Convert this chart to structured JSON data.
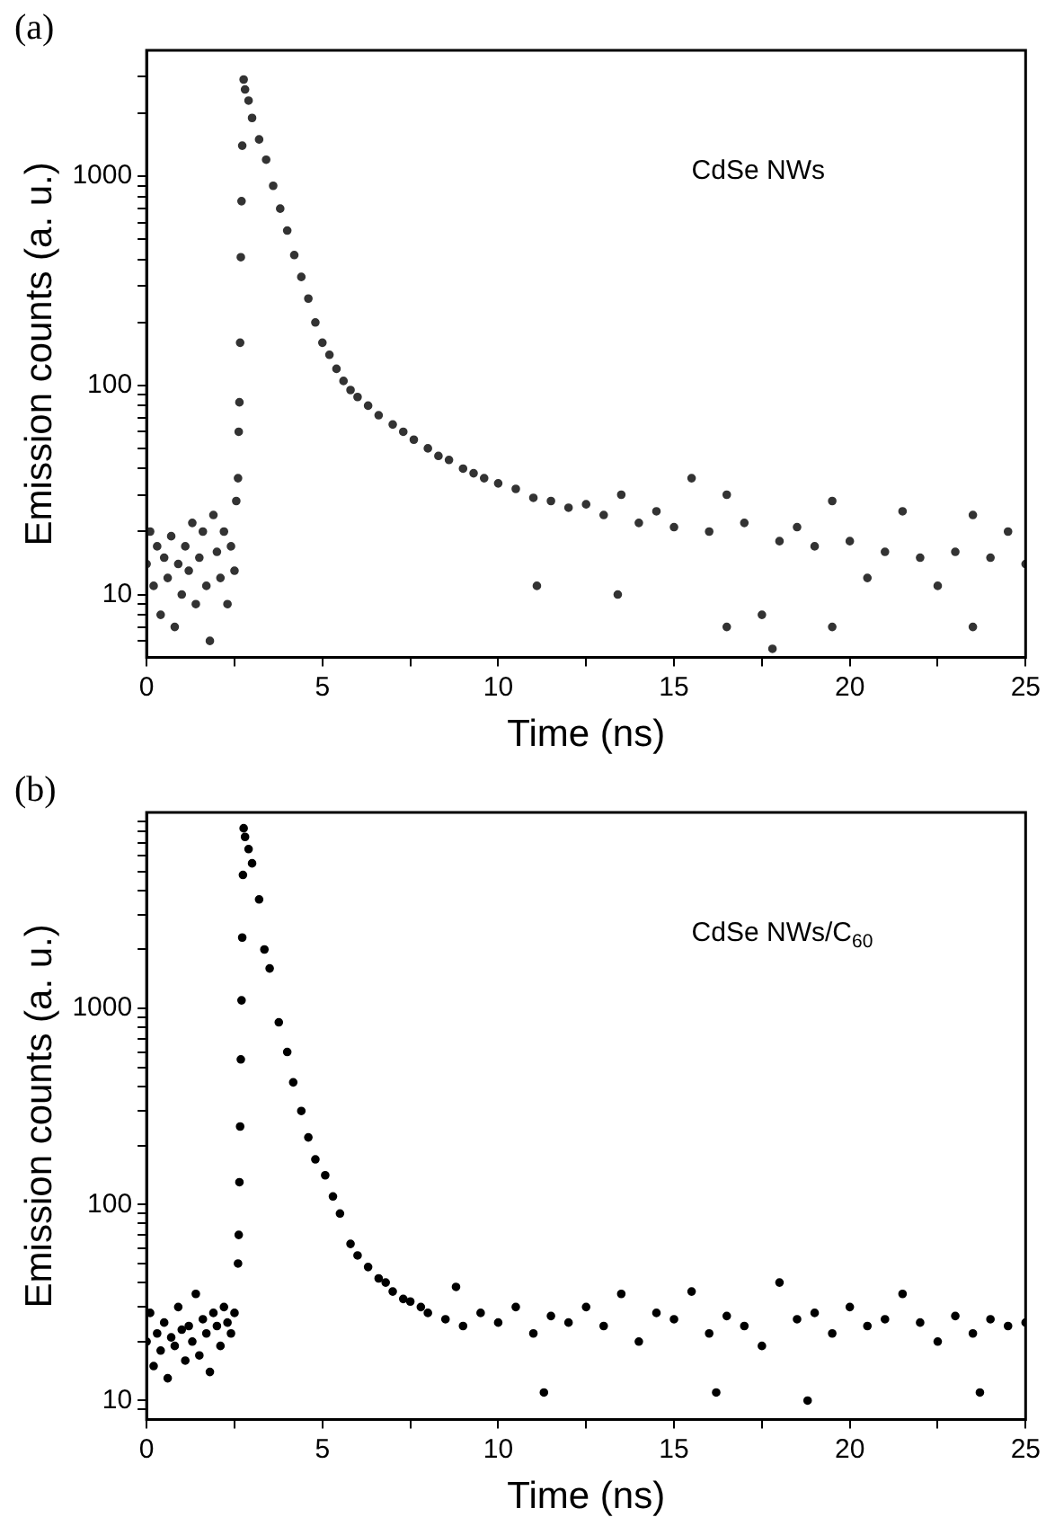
{
  "chart_data": [
    {
      "type": "scatter",
      "title": "(a)",
      "xlabel": "Time (ns)",
      "ylabel": "Emission counts (a. u.)",
      "annotations": [
        "CdSe NWs"
      ],
      "log": "y",
      "grid": false,
      "legend": false,
      "marker": "circle",
      "xlim": [
        0,
        25
      ],
      "ylim": [
        5,
        4000
      ],
      "xticks": [
        0,
        {
          "value": 2.5,
          "label": null
        },
        5,
        {
          "value": 7.5,
          "label": null
        },
        10,
        {
          "value": 12.5,
          "label": null
        },
        15,
        {
          "value": 17.5,
          "label": null
        },
        20,
        {
          "value": 22.5,
          "label": null
        },
        25
      ],
      "yticks": [
        {
          "value": 6,
          "label": null
        },
        {
          "value": 7,
          "label": null
        },
        {
          "value": 8,
          "label": null
        },
        {
          "value": 9,
          "label": null
        },
        10,
        {
          "value": 20,
          "label": null
        },
        {
          "value": 30,
          "label": null
        },
        {
          "value": 40,
          "label": null
        },
        {
          "value": 50,
          "label": null
        },
        {
          "value": 60,
          "label": null
        },
        {
          "value": 70,
          "label": null
        },
        {
          "value": 80,
          "label": null
        },
        {
          "value": 90,
          "label": null
        },
        100,
        {
          "value": 200,
          "label": null
        },
        {
          "value": 300,
          "label": null
        },
        {
          "value": 400,
          "label": null
        },
        {
          "value": 500,
          "label": null
        },
        {
          "value": 600,
          "label": null
        },
        {
          "value": 700,
          "label": null
        },
        {
          "value": 800,
          "label": null
        },
        {
          "value": 900,
          "label": null
        },
        1000,
        {
          "value": 2000,
          "label": null
        },
        {
          "value": 3000,
          "label": null
        }
      ],
      "series": [
        {
          "color": "#333333",
          "x": [
            0,
            0.1,
            0.2,
            0.3,
            0.4,
            0.5,
            0.6,
            0.7,
            0.8,
            0.9,
            1.0,
            1.1,
            1.2,
            1.3,
            1.4,
            1.5,
            1.6,
            1.7,
            1.8,
            1.9,
            2.0,
            2.1,
            2.2,
            2.3,
            2.4,
            2.5,
            2.55,
            2.6,
            2.62,
            2.64,
            2.66,
            2.68,
            2.7,
            2.72,
            2.76,
            2.8,
            2.9,
            3.0,
            3.2,
            3.4,
            3.6,
            3.8,
            4.0,
            4.2,
            4.4,
            4.6,
            4.8,
            5.0,
            5.2,
            5.4,
            5.6,
            5.8,
            6.0,
            6.3,
            6.6,
            7.0,
            7.3,
            7.6,
            8.0,
            8.3,
            8.6,
            9.0,
            9.3,
            9.6,
            10.0,
            10.5,
            11,
            11.1,
            11.5,
            12,
            12.5,
            13,
            13.4,
            13.5,
            14,
            14.5,
            15,
            15.5,
            16,
            16.5,
            16.5,
            17,
            17.5,
            17.8,
            18,
            18.5,
            19,
            19.5,
            19.5,
            20,
            20.5,
            21,
            21.5,
            22,
            22.5,
            23,
            23.5,
            23.5,
            24,
            24.5,
            25
          ],
          "values": [
            14,
            20,
            11,
            17,
            8,
            15,
            12,
            19,
            7,
            14,
            10,
            17,
            13,
            22,
            9,
            15,
            20,
            11,
            6,
            24,
            16,
            12,
            20,
            9,
            17,
            13,
            28,
            36,
            60,
            83,
            160,
            410,
            760,
            1400,
            2900,
            2600,
            2300,
            1900,
            1500,
            1200,
            900,
            700,
            550,
            420,
            330,
            260,
            200,
            160,
            140,
            120,
            105,
            95,
            88,
            80,
            72,
            65,
            60,
            55,
            50,
            46,
            44,
            40,
            38,
            36,
            34,
            32,
            29,
            11,
            28,
            26,
            27,
            24,
            10,
            30,
            22,
            25,
            21,
            36,
            20,
            7,
            30,
            22,
            8,
            5.5,
            18,
            21,
            17,
            7,
            28,
            18,
            12,
            16,
            25,
            15,
            11,
            16,
            7,
            24,
            15,
            20,
            14
          ]
        }
      ]
    },
    {
      "type": "scatter",
      "title": "(b)",
      "xlabel": "Time (ns)",
      "ylabel": "Emission counts (a. u.)",
      "annotations": [
        "CdSe NWs/C$_{60}$"
      ],
      "log": "y",
      "grid": false,
      "legend": false,
      "marker": "circle",
      "xlim": [
        0,
        25
      ],
      "ylim": [
        8,
        10000
      ],
      "xticks": [
        0,
        {
          "value": 2.5,
          "label": null
        },
        5,
        {
          "value": 7.5,
          "label": null
        },
        10,
        {
          "value": 12.5,
          "label": null
        },
        15,
        {
          "value": 17.5,
          "label": null
        },
        20,
        {
          "value": 22.5,
          "label": null
        },
        25
      ],
      "yticks": [
        {
          "value": 9,
          "label": null
        },
        10,
        {
          "value": 20,
          "label": null
        },
        {
          "value": 30,
          "label": null
        },
        {
          "value": 40,
          "label": null
        },
        {
          "value": 50,
          "label": null
        },
        {
          "value": 60,
          "label": null
        },
        {
          "value": 70,
          "label": null
        },
        {
          "value": 80,
          "label": null
        },
        {
          "value": 90,
          "label": null
        },
        100,
        {
          "value": 200,
          "label": null
        },
        {
          "value": 300,
          "label": null
        },
        {
          "value": 400,
          "label": null
        },
        {
          "value": 500,
          "label": null
        },
        {
          "value": 600,
          "label": null
        },
        {
          "value": 700,
          "label": null
        },
        {
          "value": 800,
          "label": null
        },
        {
          "value": 900,
          "label": null
        },
        1000,
        {
          "value": 2000,
          "label": null
        },
        {
          "value": 3000,
          "label": null
        },
        {
          "value": 4000,
          "label": null
        },
        {
          "value": 5000,
          "label": null
        },
        {
          "value": 6000,
          "label": null
        },
        {
          "value": 7000,
          "label": null
        },
        {
          "value": 8000,
          "label": null
        },
        {
          "value": 9000,
          "label": null
        }
      ],
      "series": [
        {
          "color": "#000000",
          "x": [
            0,
            0.1,
            0.2,
            0.3,
            0.4,
            0.5,
            0.6,
            0.7,
            0.8,
            0.9,
            1.0,
            1.1,
            1.2,
            1.3,
            1.4,
            1.5,
            1.6,
            1.7,
            1.8,
            1.9,
            2.0,
            2.1,
            2.2,
            2.3,
            2.4,
            2.5,
            2.6,
            2.62,
            2.64,
            2.66,
            2.68,
            2.7,
            2.72,
            2.74,
            2.76,
            2.8,
            2.9,
            3.0,
            3.2,
            3.35,
            3.5,
            3.76,
            4.0,
            4.17,
            4.4,
            4.6,
            4.8,
            5.08,
            5.3,
            5.5,
            5.8,
            6.0,
            6.3,
            6.6,
            6.8,
            7.0,
            7.3,
            7.5,
            7.8,
            8.0,
            8.5,
            8.8,
            9.0,
            9.5,
            10,
            10.5,
            11,
            11.3,
            11.5,
            12,
            12.5,
            13,
            13.5,
            14,
            14.5,
            15,
            15.5,
            16,
            16.2,
            16.5,
            17,
            17.5,
            18,
            18.5,
            18.8,
            19,
            19.5,
            20,
            20.5,
            21,
            21.5,
            22,
            22.5,
            23,
            23.5,
            23.7,
            24,
            24.5,
            25
          ],
          "values": [
            20,
            28,
            15,
            22,
            18,
            25,
            13,
            21,
            19,
            30,
            23,
            16,
            24,
            20,
            35,
            17,
            26,
            22,
            14,
            28,
            24,
            19,
            30,
            25,
            22,
            28,
            50,
            70,
            130,
            250,
            550,
            1100,
            2300,
            4800,
            8300,
            7500,
            6500,
            5500,
            3600,
            2000,
            1600,
            850,
            600,
            420,
            300,
            220,
            170,
            141,
            110,
            90,
            63,
            55,
            48,
            42,
            40,
            36,
            33,
            32,
            30,
            28,
            26,
            38,
            24,
            28,
            25,
            30,
            22,
            11,
            27,
            25,
            30,
            24,
            35,
            20,
            28,
            26,
            36,
            22,
            11,
            27,
            24,
            19,
            40,
            26,
            10,
            28,
            22,
            30,
            24,
            26,
            35,
            25,
            20,
            27,
            22,
            11,
            26,
            24,
            25
          ]
        }
      ]
    }
  ]
}
